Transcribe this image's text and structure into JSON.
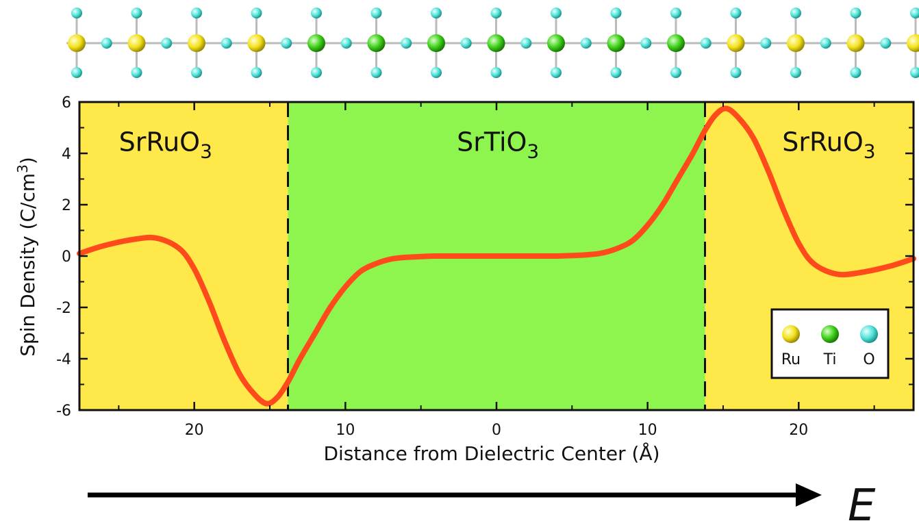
{
  "chart_data": {
    "type": "line",
    "xlabel": "Distance from Dielectric Center (Å)",
    "ylabel": "Spin Density (C/cm",
    "ylabel_sup": "3",
    "ylabel_end": ")",
    "xlim": [
      -27.6,
      27.6
    ],
    "ylim": [
      -6,
      6
    ],
    "x_ticks": [
      -20,
      -10,
      0,
      10,
      20
    ],
    "x_tick_labels": [
      "20",
      "10",
      "0",
      "10",
      "20"
    ],
    "y_ticks": [
      -6,
      -4,
      -2,
      0,
      2,
      4,
      6
    ],
    "y_tick_labels": [
      "-6",
      "-4",
      "-2",
      "0",
      "2",
      "4",
      "6"
    ],
    "grid": false,
    "legend": "bottom-right",
    "regions": [
      {
        "label": "SrRuO",
        "sub": "3",
        "from": -27.6,
        "to": -13.8,
        "color": "#ffe84a"
      },
      {
        "label": "SrTiO",
        "sub": "3",
        "from": -13.8,
        "to": 13.8,
        "color": "#8ef54f"
      },
      {
        "label": "SrRuO",
        "sub": "3",
        "from": 13.8,
        "to": 27.6,
        "color": "#ffe84a"
      }
    ],
    "boundaries": [
      -13.8,
      13.8
    ],
    "series": [
      {
        "color": "#ff4a1c",
        "x": [
          -27.6,
          -26,
          -24,
          -22.5,
          -21,
          -20,
          -19,
          -18,
          -17,
          -16,
          -15.2,
          -14.5,
          -13.8,
          -13,
          -12,
          -11,
          -10,
          -9,
          -8,
          -7,
          -6,
          -5,
          -4,
          -3,
          -2,
          -1,
          0,
          1,
          2,
          3,
          4,
          5,
          6,
          7,
          8,
          9,
          10,
          11,
          12,
          13,
          13.8,
          14.5,
          15.2,
          16,
          17,
          18,
          19,
          20,
          21,
          22.5,
          24,
          26,
          27.6
        ],
        "y": [
          0.1,
          0.4,
          0.65,
          0.7,
          0.3,
          -0.5,
          -1.8,
          -3.3,
          -4.6,
          -5.4,
          -5.75,
          -5.5,
          -4.9,
          -4.0,
          -3.0,
          -2.0,
          -1.2,
          -0.6,
          -0.3,
          -0.12,
          -0.05,
          -0.02,
          0.0,
          0.0,
          0.0,
          0.0,
          0.0,
          0.0,
          0.0,
          0.0,
          0.0,
          0.02,
          0.05,
          0.12,
          0.3,
          0.6,
          1.2,
          2.0,
          3.0,
          4.0,
          4.9,
          5.5,
          5.75,
          5.4,
          4.6,
          3.3,
          1.8,
          0.5,
          -0.3,
          -0.7,
          -0.65,
          -0.4,
          -0.1
        ]
      }
    ]
  },
  "legend": {
    "items": [
      {
        "label": "Ru",
        "color": "#f4e11c"
      },
      {
        "label": "Ti",
        "color": "#3fd01a"
      },
      {
        "label": "O",
        "color": "#52e3d8"
      }
    ]
  },
  "efield": {
    "label": "E",
    "icon": "right-arrow-icon"
  },
  "structure": {
    "cations": [
      "Ru",
      "Ru",
      "Ru",
      "Ru",
      "Ti",
      "Ti",
      "Ti",
      "Ti",
      "Ti",
      "Ti",
      "Ti",
      "Ru",
      "Ru",
      "Ru",
      "Ru"
    ],
    "colors": {
      "Ru": "#f4e11c",
      "Ti": "#3fd01a",
      "O": "#52e3d8",
      "bond": "#bbbbbb"
    }
  }
}
